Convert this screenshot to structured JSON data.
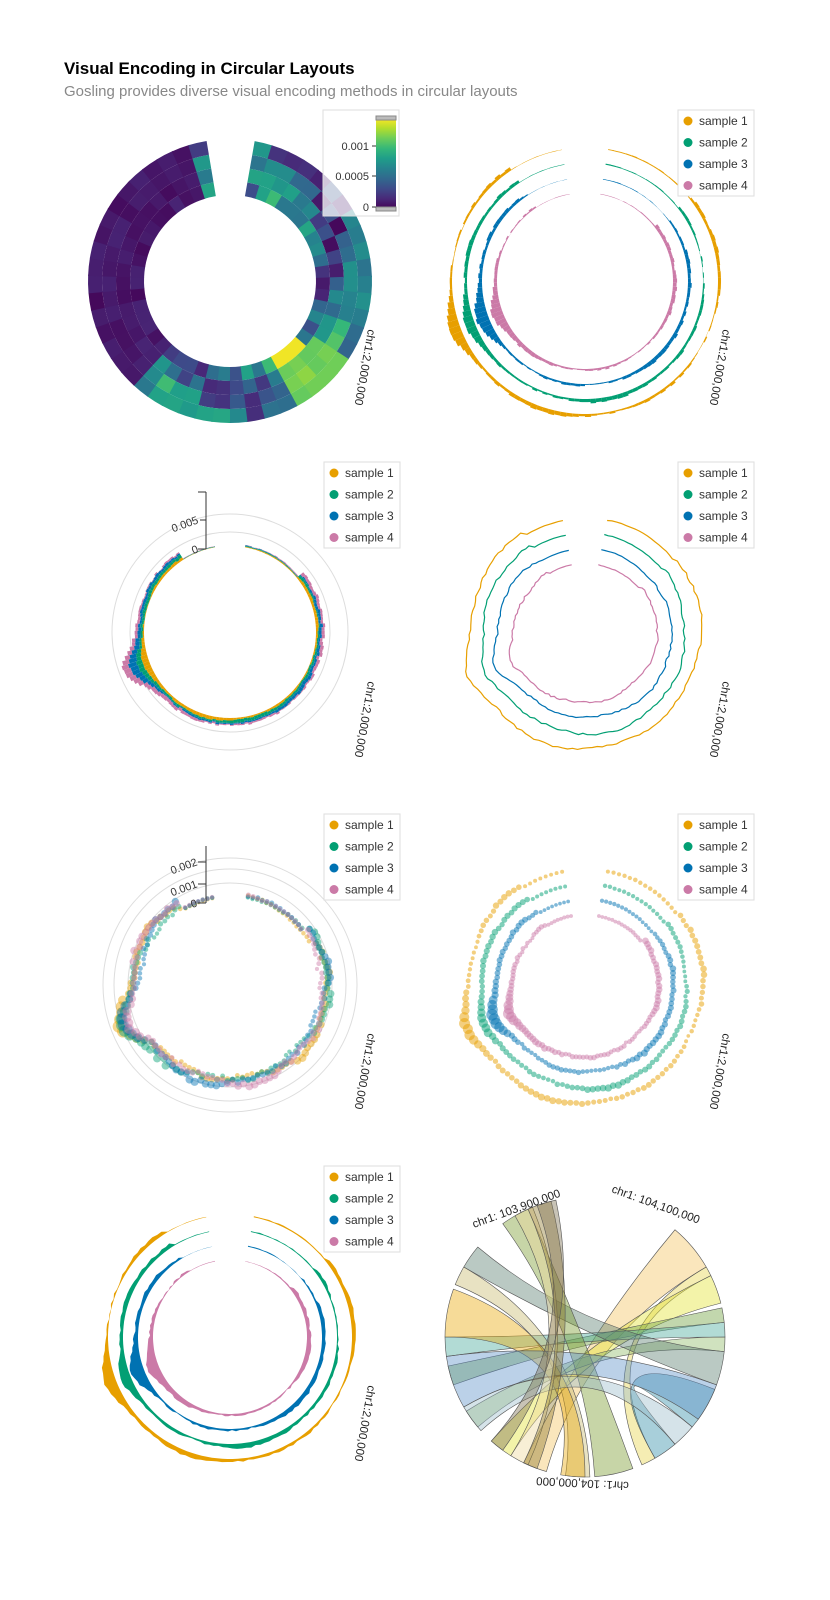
{
  "title": "Visual Encoding in Circular Layouts",
  "subtitle": "Gosling provides diverse visual encoding methods in circular layouts",
  "colors": {
    "sample 1": "#E79F00",
    "sample 2": "#029F73",
    "sample 3": "#0072B2",
    "sample 4": "#CB7AA7",
    "axis": "#555555",
    "grid": "#dddddd"
  },
  "legend_entries": [
    "sample 1",
    "sample 2",
    "sample 3",
    "sample 4"
  ],
  "position_label": "chr1:2,000,000",
  "chart_data": [
    {
      "panel": "heatmap",
      "type": "heatmap",
      "legend": "colorbar",
      "colorbar_ticks": [
        "0.001",
        "0.0005",
        "0"
      ],
      "color_range": [
        0,
        0.0013
      ],
      "rings": [
        "sample 1",
        "sample 2",
        "sample 3",
        "sample 4"
      ],
      "axis_label": "chr1:2,000,000"
    },
    {
      "panel": "bar-rings",
      "type": "bar",
      "series": [
        "sample 1",
        "sample 2",
        "sample 3",
        "sample 4"
      ],
      "legend": "top-right",
      "axis_label": "chr1:2,000,000"
    },
    {
      "panel": "stacked-bar",
      "type": "bar",
      "stacked": true,
      "series": [
        "sample 1",
        "sample 2",
        "sample 3",
        "sample 4"
      ],
      "y_ticks": [
        "0.005",
        "0"
      ],
      "ylim": [
        0,
        0.006
      ],
      "legend": "top-right",
      "axis_label": "chr1:2,000,000"
    },
    {
      "panel": "line-rings",
      "type": "line",
      "series": [
        "sample 1",
        "sample 2",
        "sample 3",
        "sample 4"
      ],
      "legend": "top-right",
      "axis_label": "chr1:2,000,000"
    },
    {
      "panel": "overlaid-points",
      "type": "scatter",
      "series": [
        "sample 1",
        "sample 2",
        "sample 3",
        "sample 4"
      ],
      "y_ticks": [
        "0.002",
        "0.001",
        "0"
      ],
      "ylim": [
        0,
        0.0025
      ],
      "legend": "top-right",
      "axis_label": "chr1:2,000,000"
    },
    {
      "panel": "point-rings",
      "type": "scatter",
      "series": [
        "sample 1",
        "sample 2",
        "sample 3",
        "sample 4"
      ],
      "legend": "top-right",
      "axis_label": "chr1:2,000,000"
    },
    {
      "panel": "area-rings",
      "type": "area",
      "series": [
        "sample 1",
        "sample 2",
        "sample 3",
        "sample 4"
      ],
      "legend": "top-right",
      "axis_label": "chr1:2,000,000"
    },
    {
      "panel": "chords",
      "type": "chord",
      "labels": [
        "chr1: 103,900,000",
        "chr1: 104,100,000",
        "chr1: 104,000,000"
      ]
    }
  ]
}
